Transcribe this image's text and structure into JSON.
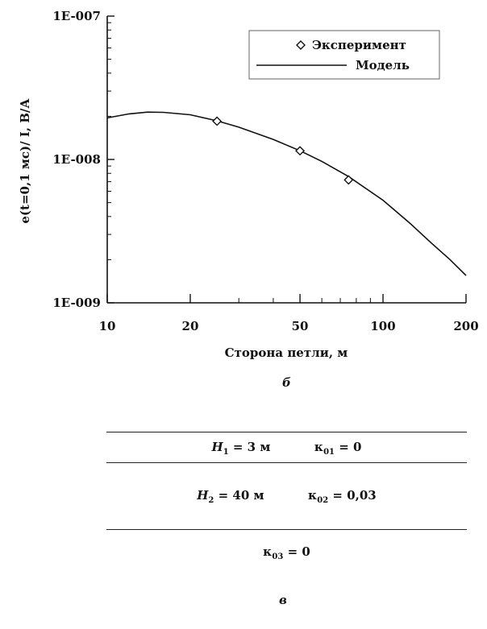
{
  "chart_data": {
    "type": "scatter",
    "xscale": "log",
    "yscale": "log",
    "xlim": [
      10,
      200
    ],
    "ylim": [
      1e-09,
      1e-07
    ],
    "xticks": [
      "10",
      "20",
      "50",
      "100",
      "200"
    ],
    "yticks": [
      "1E-009",
      "1E-008",
      "1E-007"
    ],
    "xlabel": "Сторона петли, м",
    "ylabel": "e(t=0,1 мс)/ I, В/А",
    "legend_position": "top-right",
    "grid": false,
    "series": [
      {
        "name": "Эксперимент",
        "kind": "markers",
        "marker": "diamond",
        "x": [
          25,
          50,
          75
        ],
        "y": [
          1.85e-08,
          1.15e-08,
          7.2e-09
        ]
      },
      {
        "name": "Модель",
        "kind": "line",
        "x": [
          10,
          12,
          14,
          16,
          20,
          25,
          30,
          40,
          50,
          60,
          75,
          100,
          125,
          150,
          175,
          200
        ],
        "y": [
          1.95e-08,
          2.08e-08,
          2.14e-08,
          2.13e-08,
          2.05e-08,
          1.86e-08,
          1.68e-08,
          1.38e-08,
          1.15e-08,
          9.7e-09,
          7.6e-09,
          5.2e-09,
          3.6e-09,
          2.6e-09,
          2e-09,
          1.55e-09
        ]
      }
    ]
  },
  "captions": {
    "chart": "б",
    "table": "в"
  },
  "layers": {
    "row1": {
      "h_sym": "H",
      "h_sub": "1",
      "h_val": "= 3 м",
      "k_sym": "κ",
      "k_sub": "01",
      "k_val": "= 0"
    },
    "row2": {
      "h_sym": "H",
      "h_sub": "2",
      "h_val": "= 40 м",
      "k_sym": "κ",
      "k_sub": "02",
      "k_val": "= 0,03"
    },
    "row3": {
      "k_sym": "κ",
      "k_sub": "03",
      "k_val": "= 0"
    }
  }
}
